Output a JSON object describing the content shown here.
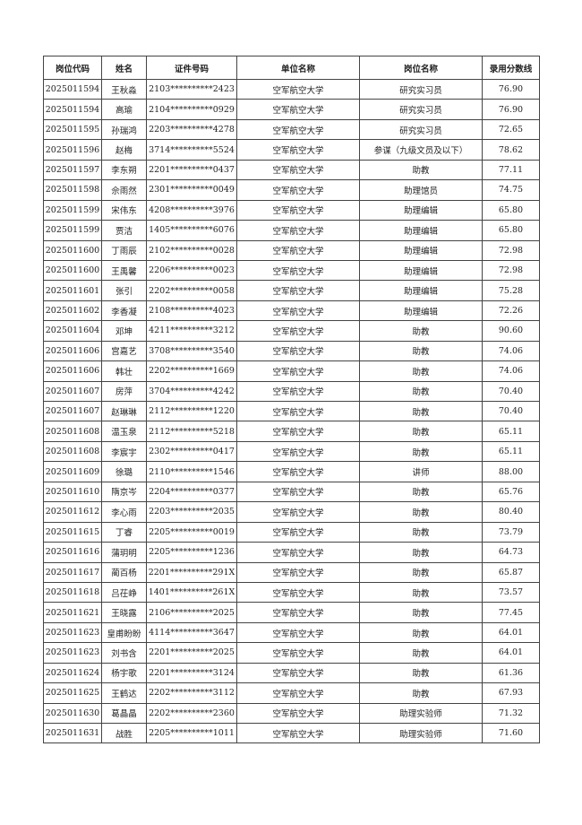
{
  "headers": [
    "岗位代码",
    "姓名",
    "证件号码",
    "单位名称",
    "岗位名称",
    "录用分数线"
  ],
  "rows": [
    [
      "2025011594",
      "王秋淼",
      "2103**********2423",
      "空军航空大学",
      "研究实习员",
      "76.90"
    ],
    [
      "2025011594",
      "高瑜",
      "2104**********0929",
      "空军航空大学",
      "研究实习员",
      "76.90"
    ],
    [
      "2025011595",
      "孙瑞鸿",
      "2203**********4278",
      "空军航空大学",
      "研究实习员",
      "72.65"
    ],
    [
      "2025011596",
      "赵梅",
      "3714**********5524",
      "空军航空大学",
      "参谋（九级文员及以下）",
      "78.62"
    ],
    [
      "2025011597",
      "李东朔",
      "2201**********0437",
      "空军航空大学",
      "助教",
      "77.11"
    ],
    [
      "2025011598",
      "佘雨然",
      "2301**********0049",
      "空军航空大学",
      "助理馆员",
      "74.75"
    ],
    [
      "2025011599",
      "宋伟东",
      "4208**********3976",
      "空军航空大学",
      "助理编辑",
      "65.80"
    ],
    [
      "2025011599",
      "贾洁",
      "1405**********6076",
      "空军航空大学",
      "助理编辑",
      "65.80"
    ],
    [
      "2025011600",
      "丁雨辰",
      "2102**********0028",
      "空军航空大学",
      "助理编辑",
      "72.98"
    ],
    [
      "2025011600",
      "王禹馨",
      "2206**********0023",
      "空军航空大学",
      "助理编辑",
      "72.98"
    ],
    [
      "2025011601",
      "张引",
      "2202**********0058",
      "空军航空大学",
      "助理编辑",
      "75.28"
    ],
    [
      "2025011602",
      "李香凝",
      "2108**********4023",
      "空军航空大学",
      "助理编辑",
      "72.26"
    ],
    [
      "2025011604",
      "邓坤",
      "4211**********3212",
      "空军航空大学",
      "助教",
      "90.60"
    ],
    [
      "2025011606",
      "宫嘉艺",
      "3708**********3540",
      "空军航空大学",
      "助教",
      "74.06"
    ],
    [
      "2025011606",
      "韩壮",
      "2202**********1669",
      "空军航空大学",
      "助教",
      "74.06"
    ],
    [
      "2025011607",
      "房萍",
      "3704**********4242",
      "空军航空大学",
      "助教",
      "70.40"
    ],
    [
      "2025011607",
      "赵琳琳",
      "2112**********1220",
      "空军航空大学",
      "助教",
      "70.40"
    ],
    [
      "2025011608",
      "温玉泉",
      "2112**********5218",
      "空军航空大学",
      "助教",
      "65.11"
    ],
    [
      "2025011608",
      "李宸宇",
      "2302**********0417",
      "空军航空大学",
      "助教",
      "65.11"
    ],
    [
      "2025011609",
      "徐璐",
      "2110**********1546",
      "空军航空大学",
      "讲师",
      "88.00"
    ],
    [
      "2025011610",
      "隋京岑",
      "2204**********0377",
      "空军航空大学",
      "助教",
      "65.76"
    ],
    [
      "2025011612",
      "李心雨",
      "2203**********2035",
      "空军航空大学",
      "助教",
      "80.40"
    ],
    [
      "2025011615",
      "丁睿",
      "2205**********0019",
      "空军航空大学",
      "助教",
      "73.79"
    ],
    [
      "2025011616",
      "蒲玥明",
      "2205**********1236",
      "空军航空大学",
      "助教",
      "64.73"
    ],
    [
      "2025011617",
      "蔺百杨",
      "2201**********291X",
      "空军航空大学",
      "助教",
      "65.87"
    ],
    [
      "2025011618",
      "吕茌峥",
      "1401**********261X",
      "空军航空大学",
      "助教",
      "73.57"
    ],
    [
      "2025011621",
      "王晓露",
      "2106**********2025",
      "空军航空大学",
      "助教",
      "77.45"
    ],
    [
      "2025011623",
      "皇甫盼盼",
      "4114**********3647",
      "空军航空大学",
      "助教",
      "64.01"
    ],
    [
      "2025011623",
      "刘书含",
      "2201**********2025",
      "空军航空大学",
      "助教",
      "64.01"
    ],
    [
      "2025011624",
      "杨宇歌",
      "2201**********3124",
      "空军航空大学",
      "助教",
      "61.36"
    ],
    [
      "2025011625",
      "王鹤达",
      "2202**********3112",
      "空军航空大学",
      "助教",
      "67.93"
    ],
    [
      "2025011630",
      "葛晶晶",
      "2202**********2360",
      "空军航空大学",
      "助理实验师",
      "71.32"
    ],
    [
      "2025011631",
      "战胜",
      "2205**********1011",
      "空军航空大学",
      "助理实验师",
      "71.60"
    ]
  ]
}
